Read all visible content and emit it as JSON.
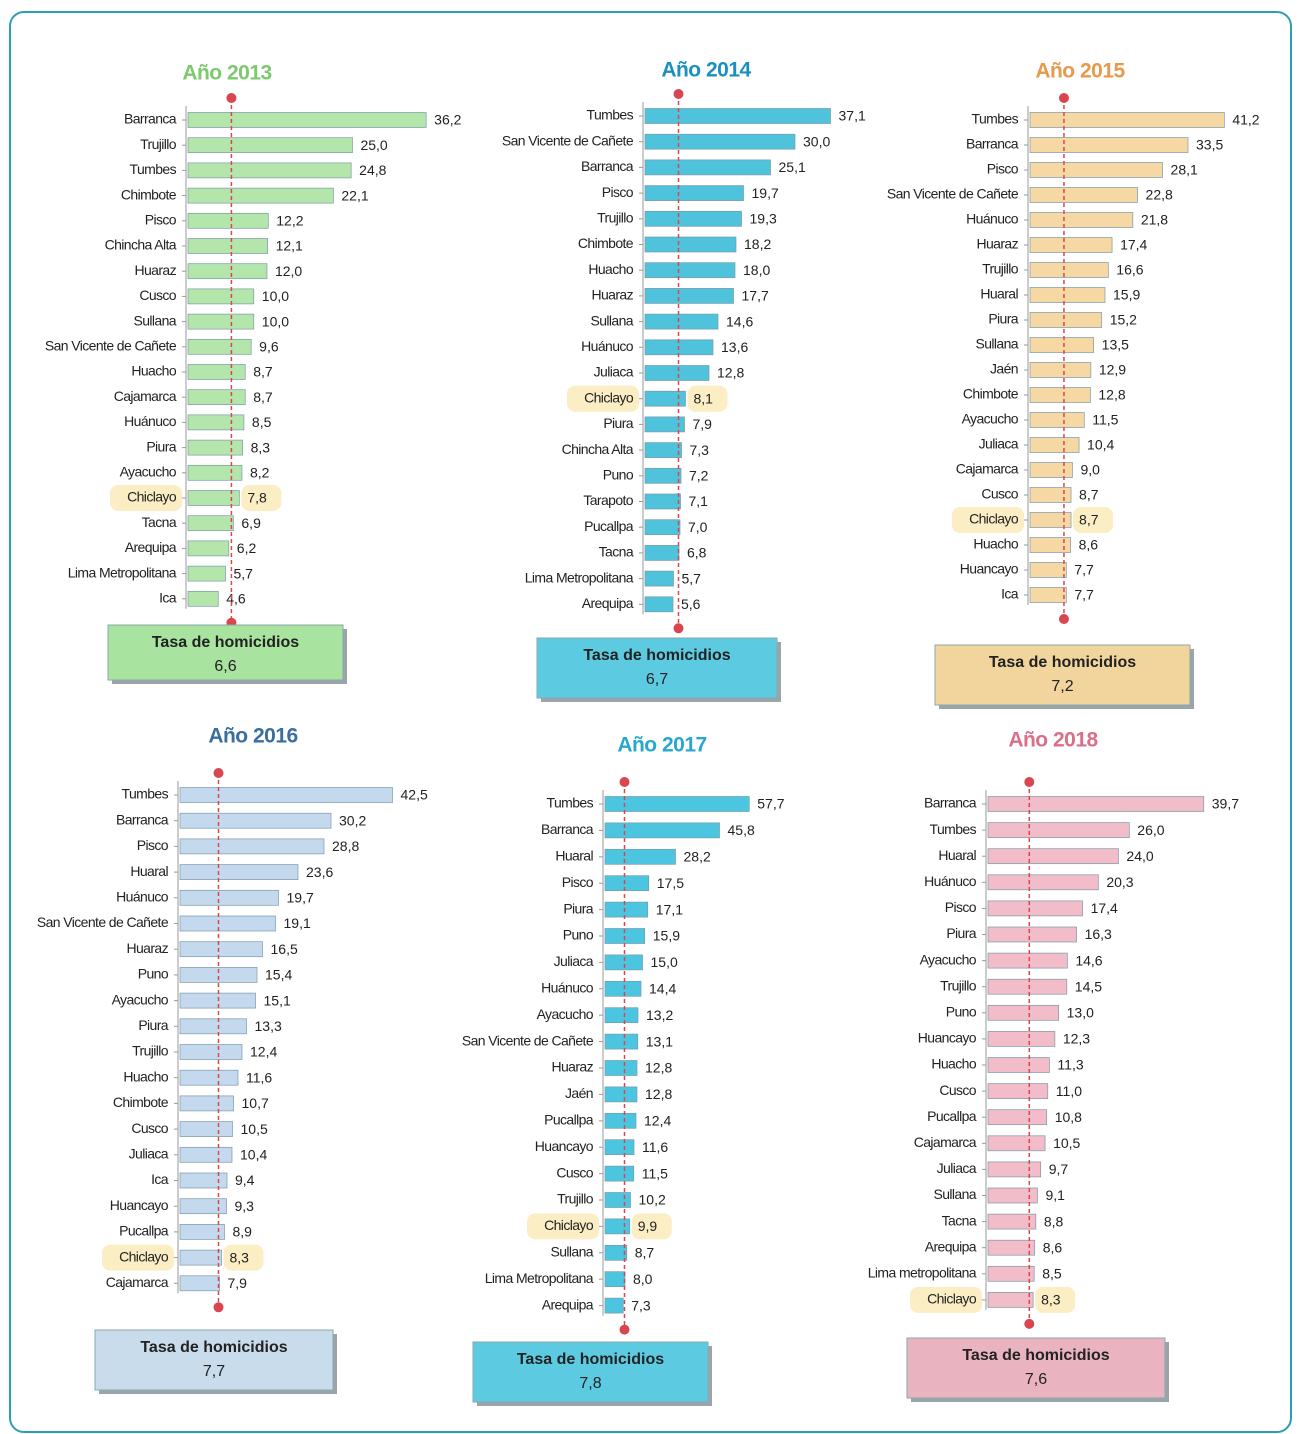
{
  "chart_data": [
    {
      "type": "bar",
      "orientation": "horizontal",
      "title": "Año 2013",
      "title_color": "#7cc96e",
      "color": "#b4e6ab",
      "highlight": "Chiclayo",
      "xlim": [
        0,
        38
      ],
      "categories": [
        "Barranca",
        "Trujillo",
        "Tumbes",
        "Chimbote",
        "Pisco",
        "Chincha Alta",
        "Huaraz",
        "Cusco",
        "Sullana",
        "San Vicente de Cañete",
        "Huacho",
        "Cajamarca",
        "Huánuco",
        "Piura",
        "Ayacucho",
        "Chiclayo",
        "Tacna",
        "Arequipa",
        "Lima Metropolitana",
        "Ica"
      ],
      "values": [
        36.2,
        25.0,
        24.8,
        22.1,
        12.2,
        12.1,
        12.0,
        10.0,
        10.0,
        9.6,
        8.7,
        8.7,
        8.5,
        8.3,
        8.2,
        7.8,
        6.9,
        6.2,
        5.7,
        4.6
      ],
      "value_labels": [
        "36,2",
        "25,0",
        "24,8",
        "22,1",
        "12,2",
        "12,1",
        "12,0",
        "10,0",
        "10,0",
        "9,6",
        "8,7",
        "8,7",
        "8,5",
        "8,3",
        "8,2",
        "7,8",
        "6,9",
        "6,2",
        "5,7",
        "4,6"
      ],
      "reference": {
        "label": "Tasa de homicidios",
        "value": 6.6,
        "value_label": "6,6",
        "color": "#a8e3a0"
      }
    },
    {
      "type": "bar",
      "orientation": "horizontal",
      "title": "Año 2014",
      "title_color": "#1a8fc0",
      "color": "#4fc3dc",
      "highlight": "Chiclayo",
      "xlim": [
        0,
        50
      ],
      "categories": [
        "Tumbes",
        "San Vicente de Cañete",
        "Barranca",
        "Pisco",
        "Trujillo",
        "Chimbote",
        "Huacho",
        "Huaraz",
        "Sullana",
        "Huánuco",
        "Juliaca",
        "Chiclayo",
        "Piura",
        "Chincha Alta",
        "Puno",
        "Tarapoto",
        "Pucallpa",
        "Tacna",
        "Lima Metropolitana",
        "Arequipa"
      ],
      "values": [
        37.1,
        30.0,
        25.1,
        19.7,
        19.3,
        18.2,
        18.0,
        17.7,
        14.6,
        13.6,
        12.8,
        8.1,
        7.9,
        7.3,
        7.2,
        7.1,
        7.0,
        6.8,
        5.7,
        5.6
      ],
      "value_labels": [
        "37,1",
        "30,0",
        "25,1",
        "19,7",
        "19,3",
        "18,2",
        "18,0",
        "17,7",
        "14,6",
        "13,6",
        "12,8",
        "8,1",
        "7,9",
        "7,3",
        "7,2",
        "7,1",
        "7,0",
        "6,8",
        "5,7",
        "5,6"
      ],
      "reference": {
        "label": "Tasa de homicidios",
        "value": 6.7,
        "value_label": "6,7",
        "color": "#5ccbe2"
      }
    },
    {
      "type": "bar",
      "orientation": "horizontal",
      "title": "Año 2015",
      "title_color": "#e69a4a",
      "color": "#f5d8a3",
      "highlight": "Chiclayo",
      "xlim": [
        0,
        53
      ],
      "categories": [
        "Tumbes",
        "Barranca",
        "Pisco",
        "San Vicente de Cañete",
        "Huánuco",
        "Huaraz",
        "Trujillo",
        "Huaral",
        "Piura",
        "Sullana",
        "Jaén",
        "Chimbote",
        "Ayacucho",
        "Juliaca",
        "Cajamarca",
        "Cusco",
        "Chiclayo",
        "Huacho",
        "Huancayo",
        "Ica"
      ],
      "values": [
        41.2,
        33.5,
        28.1,
        22.8,
        21.8,
        17.4,
        16.6,
        15.9,
        15.2,
        13.5,
        12.9,
        12.8,
        11.5,
        10.4,
        9.0,
        8.7,
        8.7,
        8.6,
        7.7,
        7.7
      ],
      "value_labels": [
        "41,2",
        "33,5",
        "28,1",
        "22,8",
        "21,8",
        "17,4",
        "16,6",
        "15,9",
        "15,2",
        "13,5",
        "12,9",
        "12,8",
        "11,5",
        "10,4",
        "9,0",
        "8,7",
        "8,7",
        "8,6",
        "7,7",
        "7,7"
      ],
      "reference": {
        "label": "Tasa de homicidios",
        "value": 7.2,
        "value_label": "7,2",
        "color": "#f1d59c"
      }
    },
    {
      "type": "bar",
      "orientation": "horizontal",
      "title": "Año 2016",
      "title_color": "#3a6e9e",
      "color": "#c4d8ee",
      "highlight": "Chiclayo",
      "xlim": [
        0,
        50
      ],
      "categories": [
        "Tumbes",
        "Barranca",
        "Pisco",
        "Huaral",
        "Huánuco",
        "San Vicente de Cañete",
        "Huaraz",
        "Puno",
        "Ayacucho",
        "Piura",
        "Trujillo",
        "Huacho",
        "Chimbote",
        "Cusco",
        "Juliaca",
        "Ica",
        "Huancayo",
        "Pucallpa",
        "Chiclayo",
        "Cajamarca"
      ],
      "values": [
        42.5,
        30.2,
        28.8,
        23.6,
        19.7,
        19.1,
        16.5,
        15.4,
        15.1,
        13.3,
        12.4,
        11.6,
        10.7,
        10.5,
        10.4,
        9.4,
        9.3,
        8.9,
        8.3,
        7.9
      ],
      "value_labels": [
        "42,5",
        "30,2",
        "28,8",
        "23,6",
        "19,7",
        "19,1",
        "16,5",
        "15,4",
        "15,1",
        "13,3",
        "12,4",
        "11,6",
        "10,7",
        "10,5",
        "10,4",
        "9,4",
        "9,3",
        "8,9",
        "8,3",
        "7,9"
      ],
      "reference": {
        "label": "Tasa de homicidios",
        "value": 7.7,
        "value_label": "7,7",
        "color": "#c9dcec"
      }
    },
    {
      "type": "bar",
      "orientation": "horizontal",
      "title": "Año 2017",
      "title_color": "#29a7cf",
      "color": "#4cc6e0",
      "highlight": "Chiclayo",
      "xlim": [
        0,
        100
      ],
      "categories": [
        "Tumbes",
        "Barranca",
        "Huaral",
        "Pisco",
        "Piura",
        "Puno",
        "Juliaca",
        "Huánuco",
        "Ayacucho",
        "San Vicente de Cañete",
        "Huaraz",
        "Jaén",
        "Pucallpa",
        "Huancayo",
        "Cusco",
        "Trujillo",
        "Chiclayo",
        "Sullana",
        "Lima Metropolitana",
        "Arequipa"
      ],
      "values": [
        57.7,
        45.8,
        28.2,
        17.5,
        17.1,
        15.9,
        15.0,
        14.4,
        13.2,
        13.1,
        12.8,
        12.8,
        12.4,
        11.6,
        11.5,
        10.2,
        9.9,
        8.7,
        8.0,
        7.3
      ],
      "value_labels": [
        "57,7",
        "45,8",
        "28,2",
        "17,5",
        "17,1",
        "15,9",
        "15,0",
        "14,4",
        "13,2",
        "13,1",
        "12,8",
        "12,8",
        "12,4",
        "11,6",
        "11,5",
        "10,2",
        "9,9",
        "8,7",
        "8,0",
        "7,3"
      ],
      "reference": {
        "label": "Tasa de homicidios",
        "value": 7.8,
        "value_label": "7,8",
        "color": "#5ccbe2"
      }
    },
    {
      "type": "bar",
      "orientation": "horizontal",
      "title": "Año 2018",
      "title_color": "#d9708a",
      "color": "#f2bcc8",
      "highlight": "Chiclayo",
      "xlim": [
        0,
        46
      ],
      "categories": [
        "Barranca",
        "Tumbes",
        "Huaral",
        "Huánuco",
        "Pisco",
        "Piura",
        "Ayacucho",
        "Trujillo",
        "Puno",
        "Huancayo",
        "Huacho",
        "Cusco",
        "Pucallpa",
        "Cajamarca",
        "Juliaca",
        "Sullana",
        "Tacna",
        "Arequipa",
        "Lima metropolitana",
        "Chiclayo"
      ],
      "values": [
        39.7,
        26.0,
        24.0,
        20.3,
        17.4,
        16.3,
        14.6,
        14.5,
        13.0,
        12.3,
        11.3,
        11.0,
        10.8,
        10.5,
        9.7,
        9.1,
        8.8,
        8.6,
        8.5,
        8.3
      ],
      "value_labels": [
        "39,7",
        "26,0",
        "24,0",
        "20,3",
        "17,4",
        "16,3",
        "14,6",
        "14,5",
        "13,0",
        "12,3",
        "11,3",
        "11,0",
        "10,8",
        "10,5",
        "9,7",
        "9,1",
        "8,8",
        "8,6",
        "8,5",
        "8,3"
      ],
      "reference": {
        "label": "Tasa de homicidios",
        "value": 7.6,
        "value_label": "7,6",
        "color": "#eab3c0"
      }
    }
  ]
}
